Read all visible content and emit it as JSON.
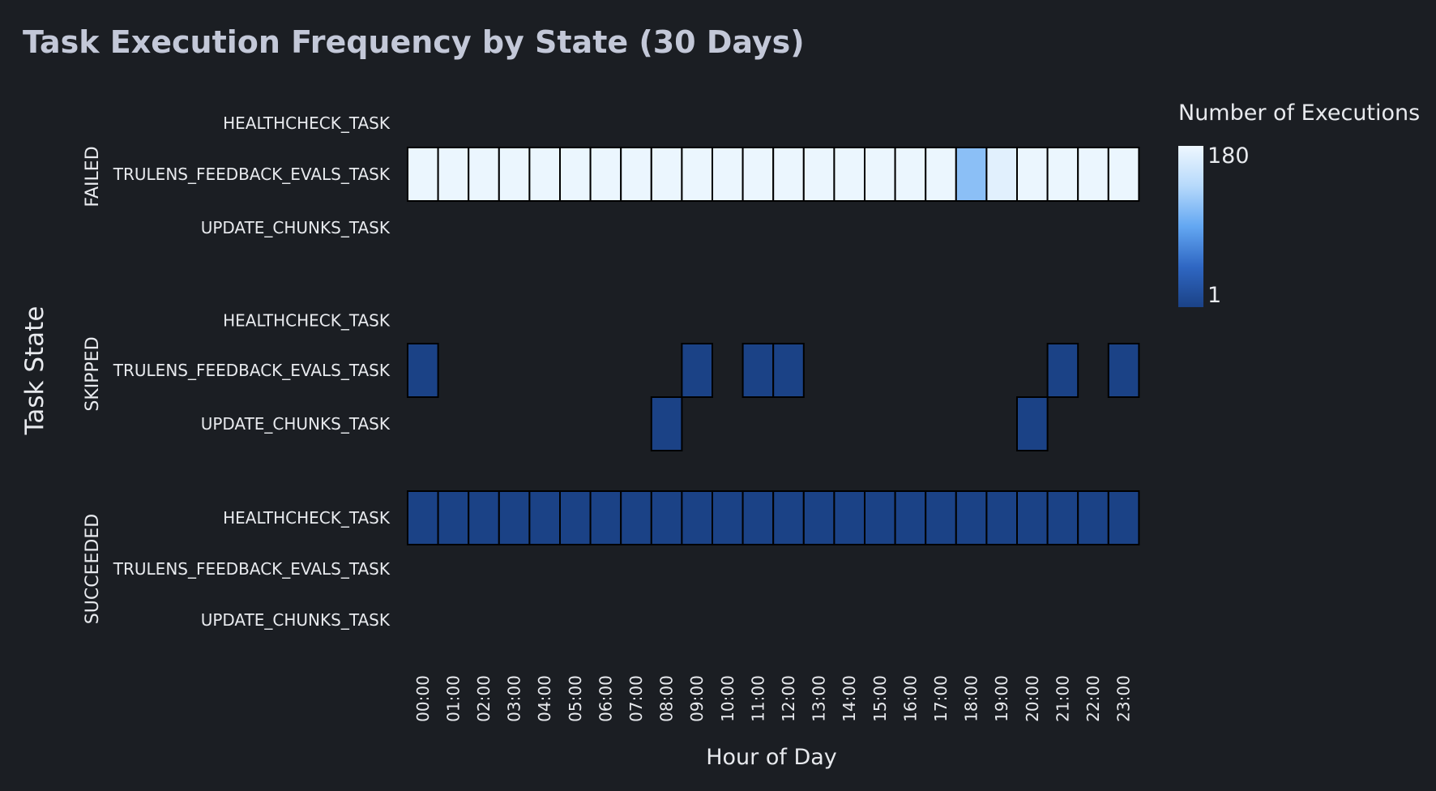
{
  "chart_data": {
    "type": "heatmap",
    "title": "Task Execution Frequency by State (30 Days)",
    "xlabel": "Hour of Day",
    "ylabel": "Task State",
    "colorbar": {
      "title": "Number of Executions",
      "min": 1,
      "max": 180,
      "min_label": "1",
      "max_label": "180",
      "colors": [
        "#1b4286",
        "#2f67c3",
        "#63a7f2",
        "#b6d9fb",
        "#eef7fe"
      ]
    },
    "hours": [
      "00:00",
      "01:00",
      "02:00",
      "03:00",
      "04:00",
      "05:00",
      "06:00",
      "07:00",
      "08:00",
      "09:00",
      "10:00",
      "11:00",
      "12:00",
      "13:00",
      "14:00",
      "15:00",
      "16:00",
      "17:00",
      "18:00",
      "19:00",
      "20:00",
      "21:00",
      "22:00",
      "23:00"
    ],
    "groups": [
      {
        "state": "FAILED",
        "rows": [
          {
            "task": "HEALTHCHECK_TASK",
            "values": [
              null,
              null,
              null,
              null,
              null,
              null,
              null,
              null,
              null,
              null,
              null,
              null,
              null,
              null,
              null,
              null,
              null,
              null,
              null,
              null,
              null,
              null,
              null,
              null
            ]
          },
          {
            "task": "TRULENS_FEEDBACK_EVALS_TASK",
            "values": [
              178,
              178,
              178,
              178,
              178,
              178,
              178,
              178,
              178,
              178,
              178,
              178,
              178,
              178,
              178,
              178,
              178,
              178,
              112,
              170,
              178,
              178,
              178,
              178
            ]
          },
          {
            "task": "UPDATE_CHUNKS_TASK",
            "values": [
              null,
              null,
              null,
              null,
              null,
              null,
              null,
              null,
              null,
              null,
              null,
              null,
              null,
              null,
              null,
              null,
              null,
              null,
              null,
              null,
              null,
              null,
              null,
              null
            ]
          }
        ]
      },
      {
        "state": "SKIPPED",
        "rows": [
          {
            "task": "HEALTHCHECK_TASK",
            "values": [
              null,
              null,
              null,
              null,
              null,
              null,
              null,
              null,
              null,
              null,
              null,
              null,
              null,
              null,
              null,
              null,
              null,
              null,
              null,
              null,
              null,
              null,
              null,
              null
            ]
          },
          {
            "task": "TRULENS_FEEDBACK_EVALS_TASK",
            "values": [
              1,
              null,
              null,
              null,
              null,
              null,
              null,
              null,
              null,
              1,
              null,
              1,
              1,
              null,
              null,
              null,
              null,
              null,
              null,
              null,
              null,
              1,
              null,
              1
            ]
          },
          {
            "task": "UPDATE_CHUNKS_TASK",
            "values": [
              null,
              null,
              null,
              null,
              null,
              null,
              null,
              null,
              1,
              null,
              null,
              null,
              null,
              null,
              null,
              null,
              null,
              null,
              null,
              null,
              1,
              null,
              null,
              null
            ]
          }
        ]
      },
      {
        "state": "SUCCEEDED",
        "rows": [
          {
            "task": "HEALTHCHECK_TASK",
            "values": [
              1,
              1,
              1,
              1,
              1,
              1,
              1,
              1,
              1,
              1,
              1,
              1,
              1,
              1,
              1,
              1,
              1,
              1,
              1,
              1,
              1,
              1,
              1,
              1
            ]
          },
          {
            "task": "TRULENS_FEEDBACK_EVALS_TASK",
            "values": [
              null,
              null,
              null,
              null,
              null,
              null,
              null,
              null,
              null,
              null,
              null,
              null,
              null,
              null,
              null,
              null,
              null,
              null,
              null,
              null,
              null,
              null,
              null,
              null
            ]
          },
          {
            "task": "UPDATE_CHUNKS_TASK",
            "values": [
              null,
              null,
              null,
              null,
              null,
              null,
              null,
              null,
              null,
              null,
              null,
              null,
              null,
              null,
              null,
              null,
              null,
              null,
              null,
              null,
              null,
              null,
              null,
              null
            ]
          }
        ]
      }
    ]
  }
}
